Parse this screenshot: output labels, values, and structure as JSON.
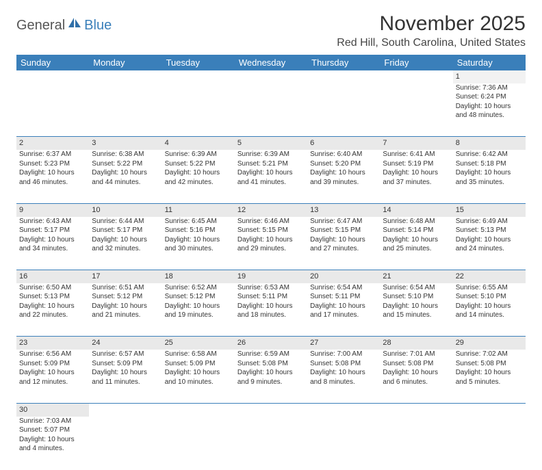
{
  "logo": {
    "general": "General",
    "blue": "Blue"
  },
  "title": "November 2025",
  "location": "Red Hill, South Carolina, United States",
  "colors": {
    "header_bg": "#3a7fba",
    "header_text": "#ffffff",
    "daynum_bg": "#e9e9e9",
    "border": "#3a7fba",
    "text": "#333333"
  },
  "weekdays": [
    "Sunday",
    "Monday",
    "Tuesday",
    "Wednesday",
    "Thursday",
    "Friday",
    "Saturday"
  ],
  "weeks": [
    [
      null,
      null,
      null,
      null,
      null,
      null,
      {
        "n": "1",
        "sr": "Sunrise: 7:36 AM",
        "ss": "Sunset: 6:24 PM",
        "dl": "Daylight: 10 hours and 48 minutes."
      }
    ],
    [
      {
        "n": "2",
        "sr": "Sunrise: 6:37 AM",
        "ss": "Sunset: 5:23 PM",
        "dl": "Daylight: 10 hours and 46 minutes."
      },
      {
        "n": "3",
        "sr": "Sunrise: 6:38 AM",
        "ss": "Sunset: 5:22 PM",
        "dl": "Daylight: 10 hours and 44 minutes."
      },
      {
        "n": "4",
        "sr": "Sunrise: 6:39 AM",
        "ss": "Sunset: 5:22 PM",
        "dl": "Daylight: 10 hours and 42 minutes."
      },
      {
        "n": "5",
        "sr": "Sunrise: 6:39 AM",
        "ss": "Sunset: 5:21 PM",
        "dl": "Daylight: 10 hours and 41 minutes."
      },
      {
        "n": "6",
        "sr": "Sunrise: 6:40 AM",
        "ss": "Sunset: 5:20 PM",
        "dl": "Daylight: 10 hours and 39 minutes."
      },
      {
        "n": "7",
        "sr": "Sunrise: 6:41 AM",
        "ss": "Sunset: 5:19 PM",
        "dl": "Daylight: 10 hours and 37 minutes."
      },
      {
        "n": "8",
        "sr": "Sunrise: 6:42 AM",
        "ss": "Sunset: 5:18 PM",
        "dl": "Daylight: 10 hours and 35 minutes."
      }
    ],
    [
      {
        "n": "9",
        "sr": "Sunrise: 6:43 AM",
        "ss": "Sunset: 5:17 PM",
        "dl": "Daylight: 10 hours and 34 minutes."
      },
      {
        "n": "10",
        "sr": "Sunrise: 6:44 AM",
        "ss": "Sunset: 5:17 PM",
        "dl": "Daylight: 10 hours and 32 minutes."
      },
      {
        "n": "11",
        "sr": "Sunrise: 6:45 AM",
        "ss": "Sunset: 5:16 PM",
        "dl": "Daylight: 10 hours and 30 minutes."
      },
      {
        "n": "12",
        "sr": "Sunrise: 6:46 AM",
        "ss": "Sunset: 5:15 PM",
        "dl": "Daylight: 10 hours and 29 minutes."
      },
      {
        "n": "13",
        "sr": "Sunrise: 6:47 AM",
        "ss": "Sunset: 5:15 PM",
        "dl": "Daylight: 10 hours and 27 minutes."
      },
      {
        "n": "14",
        "sr": "Sunrise: 6:48 AM",
        "ss": "Sunset: 5:14 PM",
        "dl": "Daylight: 10 hours and 25 minutes."
      },
      {
        "n": "15",
        "sr": "Sunrise: 6:49 AM",
        "ss": "Sunset: 5:13 PM",
        "dl": "Daylight: 10 hours and 24 minutes."
      }
    ],
    [
      {
        "n": "16",
        "sr": "Sunrise: 6:50 AM",
        "ss": "Sunset: 5:13 PM",
        "dl": "Daylight: 10 hours and 22 minutes."
      },
      {
        "n": "17",
        "sr": "Sunrise: 6:51 AM",
        "ss": "Sunset: 5:12 PM",
        "dl": "Daylight: 10 hours and 21 minutes."
      },
      {
        "n": "18",
        "sr": "Sunrise: 6:52 AM",
        "ss": "Sunset: 5:12 PM",
        "dl": "Daylight: 10 hours and 19 minutes."
      },
      {
        "n": "19",
        "sr": "Sunrise: 6:53 AM",
        "ss": "Sunset: 5:11 PM",
        "dl": "Daylight: 10 hours and 18 minutes."
      },
      {
        "n": "20",
        "sr": "Sunrise: 6:54 AM",
        "ss": "Sunset: 5:11 PM",
        "dl": "Daylight: 10 hours and 17 minutes."
      },
      {
        "n": "21",
        "sr": "Sunrise: 6:54 AM",
        "ss": "Sunset: 5:10 PM",
        "dl": "Daylight: 10 hours and 15 minutes."
      },
      {
        "n": "22",
        "sr": "Sunrise: 6:55 AM",
        "ss": "Sunset: 5:10 PM",
        "dl": "Daylight: 10 hours and 14 minutes."
      }
    ],
    [
      {
        "n": "23",
        "sr": "Sunrise: 6:56 AM",
        "ss": "Sunset: 5:09 PM",
        "dl": "Daylight: 10 hours and 12 minutes."
      },
      {
        "n": "24",
        "sr": "Sunrise: 6:57 AM",
        "ss": "Sunset: 5:09 PM",
        "dl": "Daylight: 10 hours and 11 minutes."
      },
      {
        "n": "25",
        "sr": "Sunrise: 6:58 AM",
        "ss": "Sunset: 5:09 PM",
        "dl": "Daylight: 10 hours and 10 minutes."
      },
      {
        "n": "26",
        "sr": "Sunrise: 6:59 AM",
        "ss": "Sunset: 5:08 PM",
        "dl": "Daylight: 10 hours and 9 minutes."
      },
      {
        "n": "27",
        "sr": "Sunrise: 7:00 AM",
        "ss": "Sunset: 5:08 PM",
        "dl": "Daylight: 10 hours and 8 minutes."
      },
      {
        "n": "28",
        "sr": "Sunrise: 7:01 AM",
        "ss": "Sunset: 5:08 PM",
        "dl": "Daylight: 10 hours and 6 minutes."
      },
      {
        "n": "29",
        "sr": "Sunrise: 7:02 AM",
        "ss": "Sunset: 5:08 PM",
        "dl": "Daylight: 10 hours and 5 minutes."
      }
    ],
    [
      {
        "n": "30",
        "sr": "Sunrise: 7:03 AM",
        "ss": "Sunset: 5:07 PM",
        "dl": "Daylight: 10 hours and 4 minutes."
      },
      null,
      null,
      null,
      null,
      null,
      null
    ]
  ]
}
